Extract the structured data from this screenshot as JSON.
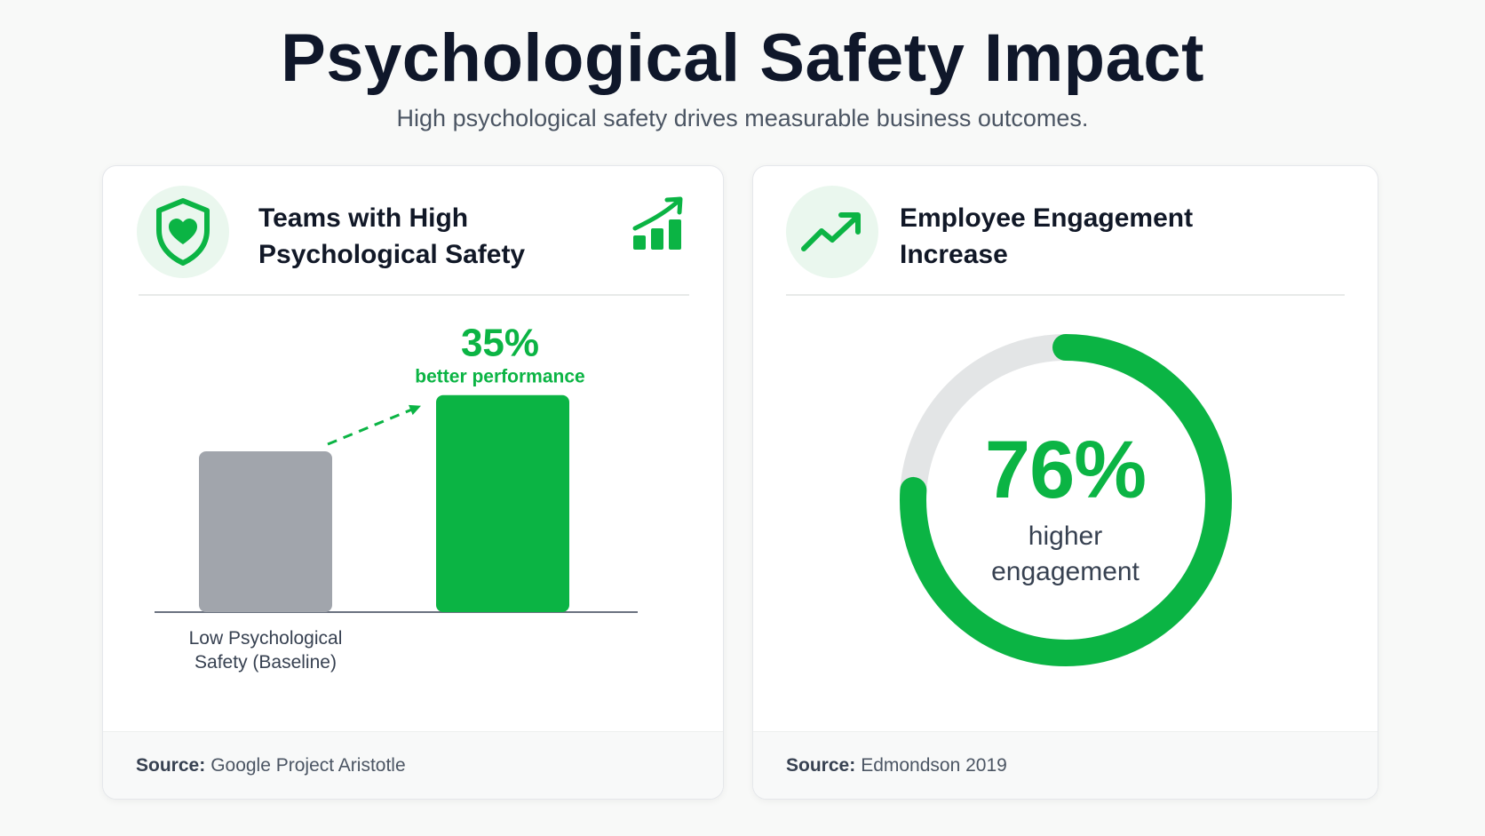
{
  "header": {
    "title": "Psychological Safety Impact",
    "subtitle": "High psychological safety drives measurable business outcomes."
  },
  "colors": {
    "accent": "#0bb444",
    "baseline_bar": "#a1a5ac",
    "ring_track": "#e3e5e6",
    "icon_bg": "#eaf7ee"
  },
  "left_card": {
    "title": "Teams with High\nPsychological Safety",
    "icon_left": "shield-heart-icon",
    "icon_right": "bar-chart-trend-icon",
    "source_label": "Source:",
    "source_value": "Google Project Aristotle"
  },
  "right_card": {
    "title": "Employee Engagement\nIncrease",
    "icon": "trend-up-icon",
    "source_label": "Source:",
    "source_value": "Edmondson 2019"
  },
  "chart_data": [
    {
      "type": "bar",
      "categories": [
        "Low Psychological Safety (Baseline)",
        ""
      ],
      "values": [
        100,
        135
      ],
      "highlight": {
        "value_label": "35%",
        "caption": "better performance"
      },
      "ylim": [
        0,
        210
      ],
      "grid": false
    },
    {
      "type": "pie",
      "variant": "donut-progress",
      "value": 76,
      "value_label": "76%",
      "caption_line1": "higher",
      "caption_line2": "engagement"
    }
  ]
}
